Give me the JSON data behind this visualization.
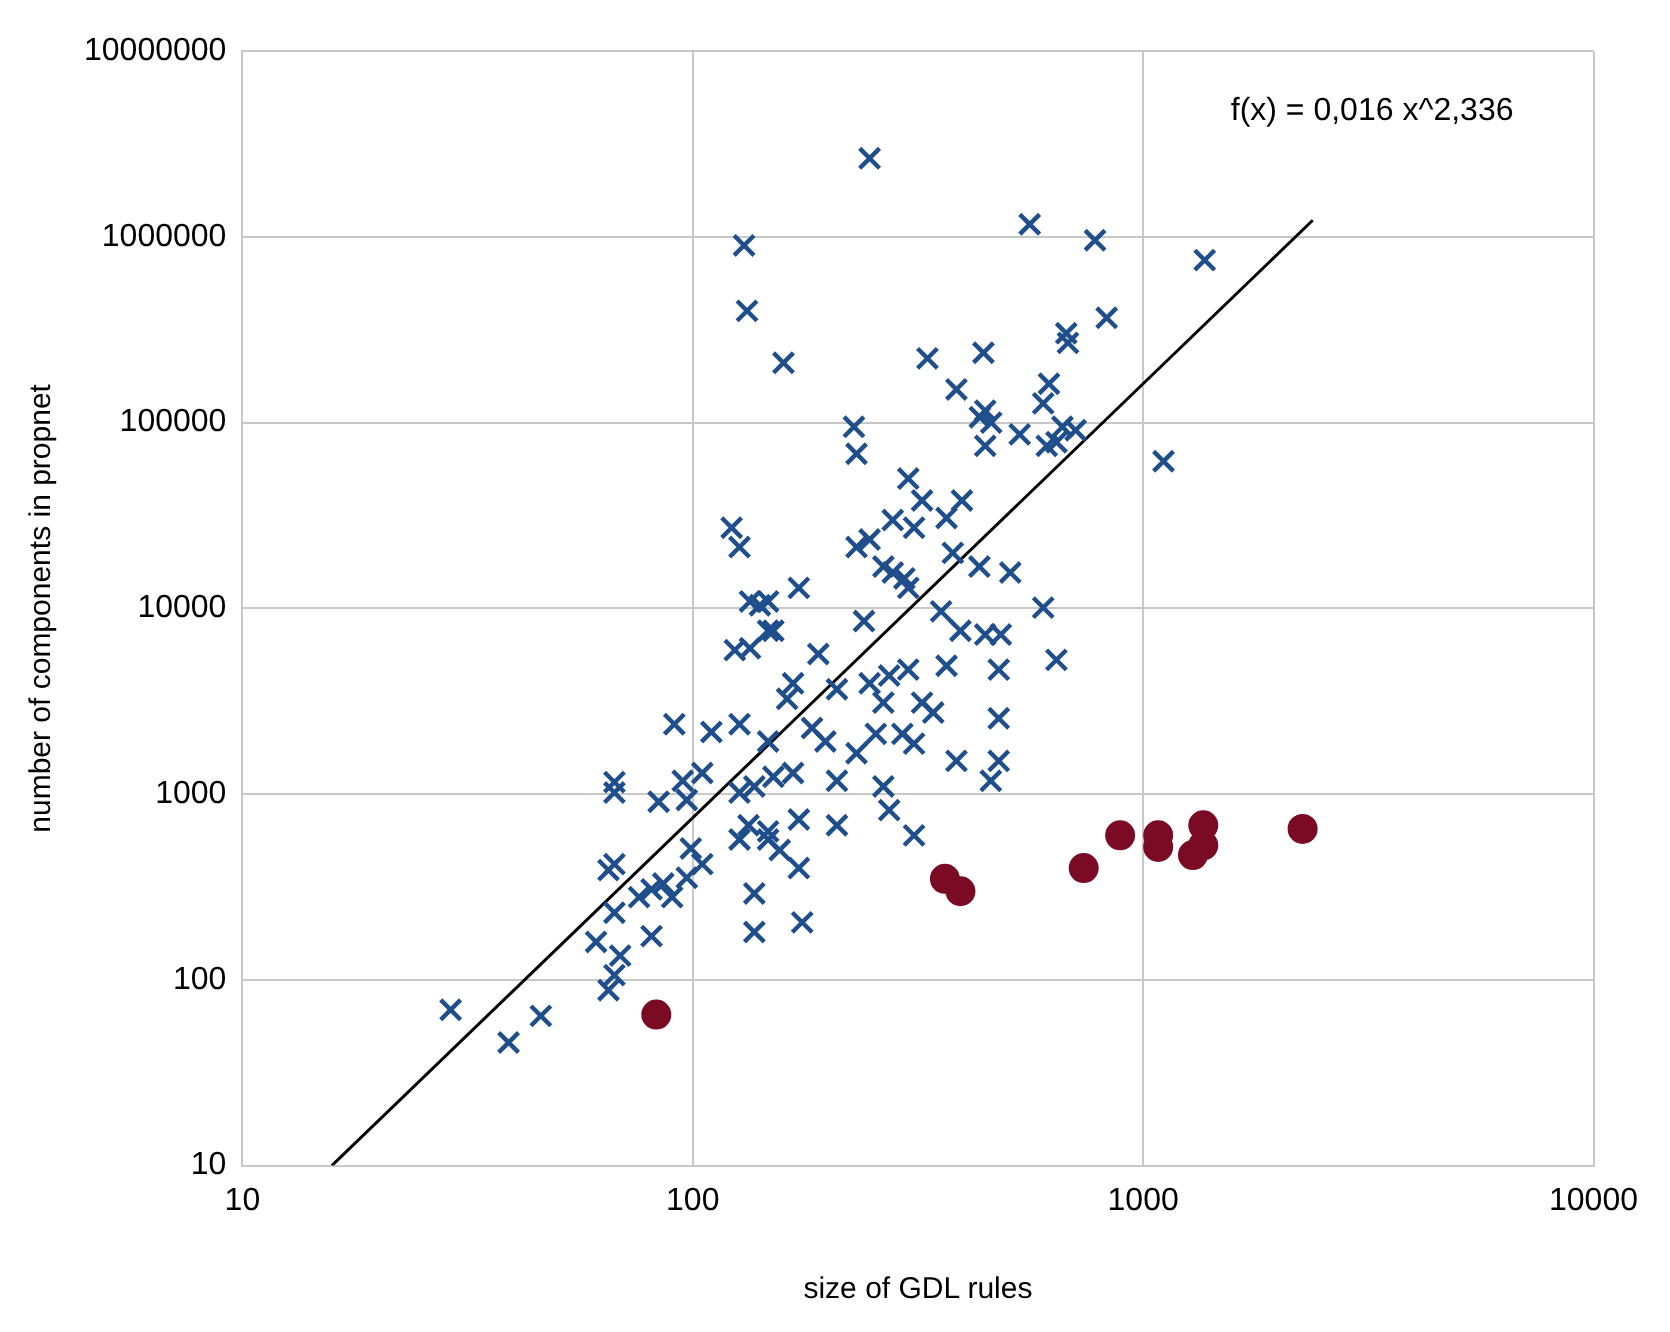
{
  "chart_data": {
    "type": "scatter",
    "xlabel": "size of GDL rules",
    "ylabel": "number of components in propnet",
    "log": "xy",
    "grid": true,
    "xlim": [
      10,
      10000
    ],
    "xticks": [
      10,
      100,
      1000,
      10000
    ],
    "ylim": [
      10,
      10000000
    ],
    "yticks": [
      10,
      100,
      1000,
      10000,
      100000,
      1000000,
      10000000
    ],
    "annotations": [
      "f(x) = 0,016 x^2,336"
    ],
    "series": [
      {
        "type": "scatter",
        "marker": "cross",
        "color": "#1f4e8c",
        "x": [
          247,
          130,
          132,
          159,
          560,
          782,
          1370,
          830,
          675,
          681,
          332,
          442,
          618,
          385,
          600,
          446,
          434,
          460,
          532,
          662,
          708,
          611,
          642,
          228,
          231,
          446,
          1110,
          301,
          323,
          396,
          366,
          278,
          310,
          231,
          247,
          378,
          433,
          507,
          265,
          278,
          295,
          301,
          172,
          147,
          600,
          356,
          240,
          151,
          393,
          446,
          483,
          190,
          642,
          366,
          478,
          301,
          273,
          167,
          162,
          209,
          247,
          265,
          323,
          342,
          478,
          184,
          197,
          255,
          292,
          310,
          231,
          385,
          478,
          459,
          151,
          167,
          209,
          265,
          172,
          209,
          273,
          310,
          147,
          156,
          172,
          137,
          175,
          137,
          122,
          127,
          134,
          141,
          124,
          134,
          147,
          91,
          110,
          127,
          147,
          67,
          67,
          84,
          97,
          95,
          105,
          127,
          137,
          133,
          147,
          127,
          67,
          65,
          99,
          105,
          97,
          81,
          86,
          90,
          76,
          67,
          61,
          69,
          81,
          67,
          65,
          29,
          39,
          46
        ],
        "values": [
          2650000,
          900000,
          400000,
          210000,
          1170000,
          960000,
          750000,
          367000,
          303000,
          269000,
          222000,
          238000,
          162000,
          151000,
          127000,
          116000,
          107000,
          100000,
          86500,
          95000,
          91000,
          75000,
          78500,
          95000,
          68000,
          75000,
          62000,
          50000,
          38100,
          38100,
          30700,
          29900,
          27200,
          21400,
          23500,
          19900,
          16800,
          15600,
          16800,
          15600,
          14500,
          12900,
          12900,
          10900,
          10100,
          9640,
          8550,
          7580,
          7580,
          7230,
          7230,
          5680,
          5280,
          4910,
          4680,
          4680,
          4350,
          3950,
          3260,
          3670,
          3950,
          3110,
          3110,
          2750,
          2560,
          2270,
          1920,
          2110,
          2110,
          1870,
          1660,
          1510,
          1510,
          1180,
          1240,
          1300,
          1180,
          1100,
          730,
          680,
          820,
          600,
          570,
          500,
          400,
          292,
          204,
          181,
          27200,
          21400,
          10900,
          10400,
          5960,
          6100,
          7580,
          2380,
          2160,
          2380,
          1920,
          1160,
          1020,
          910,
          930,
          1180,
          1300,
          1020,
          1100,
          680,
          630,
          570,
          420,
          390,
          510,
          420,
          355,
          307,
          330,
          279,
          279,
          230,
          160,
          135,
          172,
          106,
          88,
          69,
          46,
          64
        ]
      },
      {
        "type": "scatter",
        "marker": "circle",
        "color": "#7b0a24",
        "x": [
          83,
          363,
          393,
          738,
          889,
          1080,
          1080,
          1290,
          1360,
          1360,
          2260
        ],
        "values": [
          65,
          350,
          300,
          400,
          600,
          600,
          520,
          470,
          530,
          680,
          650
        ]
      },
      {
        "type": "line",
        "marker": "none",
        "color": "#000000",
        "x": [
          15.8,
          2380
        ],
        "values": [
          10,
          1230000
        ]
      }
    ]
  }
}
